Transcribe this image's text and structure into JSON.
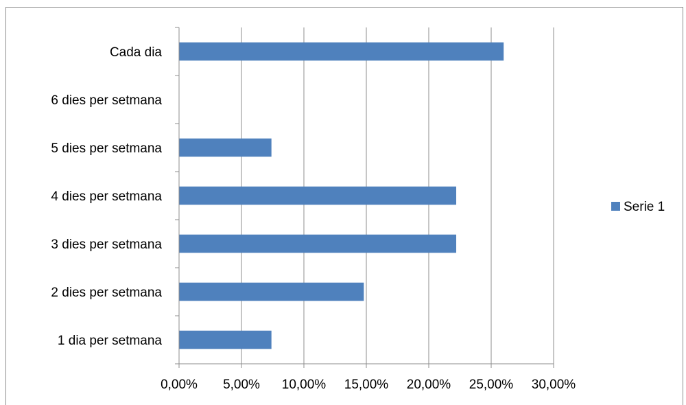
{
  "chart_data": {
    "type": "bar",
    "orientation": "horizontal",
    "title": "",
    "xlabel": "",
    "ylabel": "",
    "categories": [
      "1 dia per setmana",
      "2 dies per setmana",
      "3 dies per setmana",
      "4 dies per setmana",
      "5 dies per setmana",
      "6 dies per setmana",
      "Cada dia"
    ],
    "series": [
      {
        "name": "Serie 1",
        "color": "#4f81bd",
        "values": [
          0.074,
          0.148,
          0.222,
          0.222,
          0.074,
          0.0,
          0.26
        ]
      }
    ],
    "xlim": [
      0,
      0.3
    ],
    "x_ticks": [
      "0,00%",
      "5,00%",
      "10,00%",
      "15,00%",
      "20,00%",
      "25,00%",
      "30,00%"
    ],
    "x_tick_values": [
      0,
      0.05,
      0.1,
      0.15,
      0.2,
      0.25,
      0.3
    ],
    "grid": true,
    "gridline_color": "#8c8c8c",
    "legend_position": "right"
  }
}
